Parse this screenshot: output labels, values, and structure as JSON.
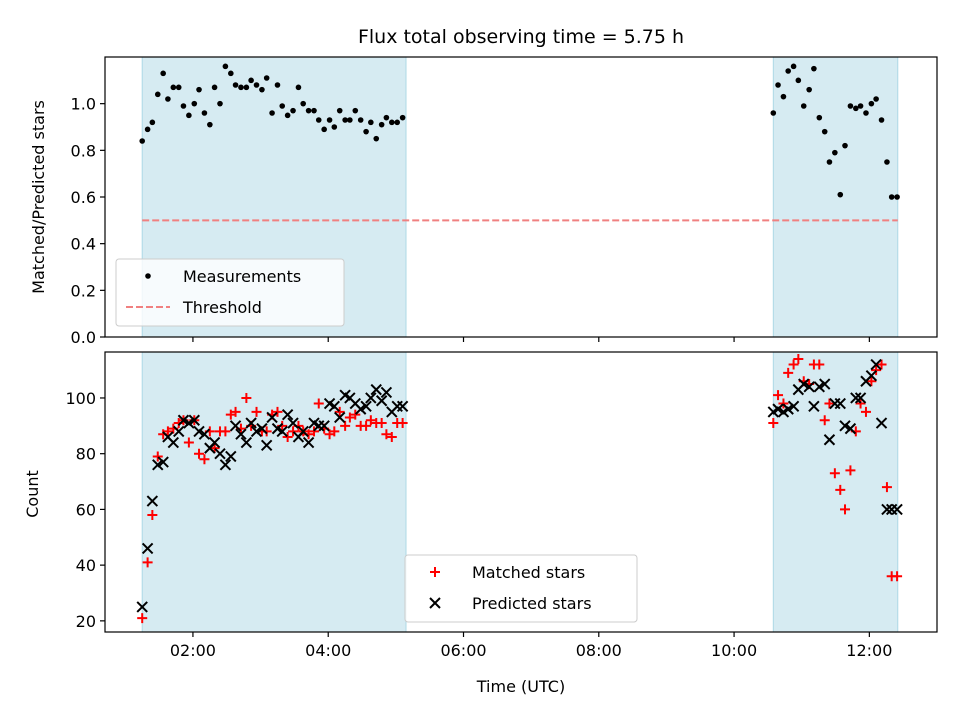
{
  "title": "Flux total observing time = 5.75 h",
  "colors": {
    "band": "#add8e6",
    "matched": "#ff0000",
    "predicted": "#000000",
    "measurement": "#000000",
    "threshold": "#f08080"
  },
  "chart_data": [
    {
      "id": "ratio",
      "type": "scatter",
      "ylabel": "Matched/Predicted stars",
      "xlabel": "",
      "xlim_hours": [
        0.7,
        13.0
      ],
      "ylim": [
        0,
        1.2
      ],
      "yticks": [
        0.0,
        0.2,
        0.4,
        0.6,
        0.8,
        1.0
      ],
      "ytick_labels": [
        "0.0",
        "0.2",
        "0.4",
        "0.6",
        "0.8",
        "1.0"
      ],
      "xticks_hours": [
        2,
        4,
        6,
        8,
        10,
        12
      ],
      "shaded_spans_hours": [
        [
          1.25,
          5.15
        ],
        [
          10.58,
          12.42
        ]
      ],
      "threshold": {
        "value": 0.5,
        "x_hours": [
          1.25,
          12.42
        ]
      },
      "legend": {
        "position": "lower-left",
        "entries": [
          "Measurements",
          "Threshold"
        ]
      },
      "series": [
        {
          "name": "Measurements",
          "marker": "dot",
          "x_hours": [
            1.25,
            1.33,
            1.4,
            1.48,
            1.56,
            1.63,
            1.71,
            1.79,
            1.86,
            1.94,
            2.02,
            2.09,
            2.17,
            2.25,
            2.32,
            2.4,
            2.48,
            2.56,
            2.63,
            2.71,
            2.79,
            2.86,
            2.94,
            3.02,
            3.09,
            3.17,
            3.25,
            3.32,
            3.4,
            3.48,
            3.56,
            3.63,
            3.71,
            3.79,
            3.86,
            3.94,
            4.02,
            4.09,
            4.17,
            4.25,
            4.32,
            4.4,
            4.48,
            4.56,
            4.63,
            4.71,
            4.79,
            4.86,
            4.94,
            5.02,
            5.1,
            10.58,
            10.65,
            10.73,
            10.8,
            10.88,
            10.95,
            11.03,
            11.11,
            11.18,
            11.26,
            11.34,
            11.41,
            11.49,
            11.57,
            11.64,
            11.72,
            11.8,
            11.87,
            11.95,
            12.03,
            12.1,
            12.18,
            12.26,
            12.33,
            12.41
          ],
          "values": [
            0.84,
            0.89,
            0.92,
            1.04,
            1.13,
            1.02,
            1.07,
            1.07,
            0.99,
            0.95,
            1.0,
            1.06,
            0.96,
            0.91,
            1.07,
            1.0,
            1.16,
            1.13,
            1.08,
            1.07,
            1.07,
            1.1,
            1.08,
            1.06,
            1.11,
            0.96,
            1.08,
            0.99,
            0.95,
            0.97,
            1.07,
            1.0,
            0.97,
            0.97,
            0.93,
            0.89,
            0.93,
            0.9,
            0.97,
            0.93,
            0.93,
            0.97,
            0.93,
            0.88,
            0.92,
            0.85,
            0.91,
            0.94,
            0.92,
            0.92,
            0.94,
            0.96,
            1.08,
            1.03,
            1.14,
            1.16,
            1.1,
            0.99,
            1.06,
            1.15,
            0.94,
            0.88,
            0.75,
            0.79,
            0.61,
            0.82,
            0.99,
            0.98,
            0.99,
            0.96,
            1.0,
            1.02,
            0.93,
            0.75,
            0.6,
            0.6
          ]
        }
      ]
    },
    {
      "id": "counts",
      "type": "scatter",
      "ylabel": "Count",
      "xlabel": "Time (UTC)",
      "xlim_hours": [
        0.7,
        13.0
      ],
      "ylim": [
        16,
        116.5
      ],
      "yticks": [
        20,
        40,
        60,
        80,
        100
      ],
      "ytick_labels": [
        "20",
        "40",
        "60",
        "80",
        "100"
      ],
      "xticks_hours": [
        2,
        4,
        6,
        8,
        10,
        12
      ],
      "xtick_labels": [
        "02:00",
        "04:00",
        "06:00",
        "08:00",
        "10:00",
        "12:00"
      ],
      "shaded_spans_hours": [
        [
          1.25,
          5.15
        ],
        [
          10.58,
          12.42
        ]
      ],
      "legend": {
        "position": "lower-center",
        "entries": [
          "Matched stars",
          "Predicted stars"
        ]
      },
      "series": [
        {
          "name": "Matched stars",
          "marker": "plus",
          "x_hours": [
            1.25,
            1.33,
            1.4,
            1.48,
            1.56,
            1.63,
            1.71,
            1.79,
            1.86,
            1.94,
            2.02,
            2.09,
            2.17,
            2.25,
            2.32,
            2.4,
            2.48,
            2.56,
            2.63,
            2.71,
            2.79,
            2.86,
            2.94,
            3.02,
            3.09,
            3.17,
            3.25,
            3.32,
            3.4,
            3.48,
            3.56,
            3.63,
            3.71,
            3.79,
            3.86,
            3.94,
            4.02,
            4.09,
            4.17,
            4.25,
            4.32,
            4.4,
            4.48,
            4.56,
            4.63,
            4.71,
            4.79,
            4.86,
            4.94,
            5.02,
            5.1,
            10.58,
            10.65,
            10.73,
            10.8,
            10.88,
            10.95,
            11.03,
            11.11,
            11.18,
            11.26,
            11.34,
            11.41,
            11.49,
            11.57,
            11.64,
            11.72,
            11.8,
            11.87,
            11.95,
            12.03,
            12.1,
            12.18,
            12.26,
            12.33,
            12.41
          ],
          "values": [
            21,
            41,
            58,
            79,
            87,
            88,
            89,
            91,
            92,
            84,
            92,
            80,
            78,
            88,
            82,
            88,
            88,
            94,
            95,
            89,
            100,
            90,
            95,
            88,
            88,
            94,
            95,
            90,
            86,
            88,
            90,
            88,
            87,
            88,
            98,
            89,
            87,
            88,
            95,
            90,
            93,
            94,
            90,
            90,
            92,
            91,
            91,
            87,
            86,
            91,
            91,
            91,
            101,
            98,
            109,
            112,
            114,
            106,
            105,
            112,
            112,
            92,
            98,
            73,
            67,
            60,
            74,
            88,
            98,
            95,
            106,
            110,
            112,
            68,
            36,
            36
          ]
        },
        {
          "name": "Predicted stars",
          "marker": "x",
          "x_hours": [
            1.25,
            1.33,
            1.4,
            1.48,
            1.56,
            1.63,
            1.71,
            1.79,
            1.86,
            1.94,
            2.02,
            2.09,
            2.17,
            2.25,
            2.32,
            2.4,
            2.48,
            2.56,
            2.63,
            2.71,
            2.79,
            2.86,
            2.94,
            3.02,
            3.09,
            3.17,
            3.25,
            3.32,
            3.4,
            3.48,
            3.56,
            3.63,
            3.71,
            3.79,
            3.86,
            3.94,
            4.02,
            4.09,
            4.17,
            4.25,
            4.32,
            4.4,
            4.48,
            4.56,
            4.63,
            4.71,
            4.79,
            4.86,
            4.94,
            5.02,
            5.1,
            10.58,
            10.65,
            10.73,
            10.8,
            10.88,
            10.95,
            11.03,
            11.11,
            11.18,
            11.26,
            11.34,
            11.41,
            11.49,
            11.57,
            11.64,
            11.72,
            11.8,
            11.87,
            11.95,
            12.03,
            12.1,
            12.18,
            12.26,
            12.33,
            12.41
          ],
          "values": [
            25,
            46,
            63,
            76,
            77,
            86,
            84,
            88,
            92,
            91,
            92,
            88,
            87,
            82,
            84,
            80,
            76,
            79,
            90,
            87,
            84,
            91,
            88,
            89,
            83,
            93,
            89,
            88,
            94,
            91,
            86,
            88,
            84,
            91,
            90,
            90,
            98,
            97,
            93,
            101,
            100,
            98,
            96,
            97,
            100,
            103,
            99,
            102,
            95,
            97,
            97,
            95,
            96,
            95,
            96,
            97,
            103,
            105,
            104,
            97,
            104,
            105,
            85,
            98,
            98,
            90,
            89,
            100,
            100,
            106,
            108,
            112,
            91,
            60,
            60,
            60
          ]
        }
      ]
    }
  ]
}
